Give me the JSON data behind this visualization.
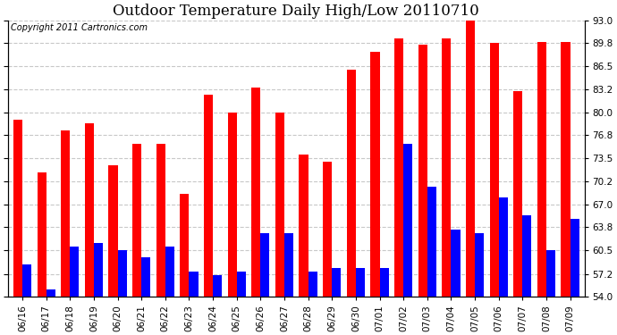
{
  "title": "Outdoor Temperature Daily High/Low 20110710",
  "copyright": "Copyright 2011 Cartronics.com",
  "categories": [
    "06/16",
    "06/17",
    "06/18",
    "06/19",
    "06/20",
    "06/21",
    "06/22",
    "06/23",
    "06/24",
    "06/25",
    "06/26",
    "06/27",
    "06/28",
    "06/29",
    "06/30",
    "07/01",
    "07/02",
    "07/03",
    "07/04",
    "07/05",
    "07/06",
    "07/07",
    "07/08",
    "07/09"
  ],
  "highs": [
    79.0,
    71.5,
    77.5,
    78.5,
    72.5,
    75.5,
    75.5,
    68.5,
    82.5,
    80.0,
    83.5,
    80.0,
    74.0,
    73.0,
    86.0,
    88.5,
    90.5,
    89.5,
    90.5,
    93.0,
    89.8,
    83.0,
    90.0,
    90.0
  ],
  "lows": [
    58.5,
    55.0,
    61.0,
    61.5,
    60.5,
    59.5,
    61.0,
    57.5,
    57.0,
    57.5,
    63.0,
    63.0,
    57.5,
    58.0,
    58.0,
    58.0,
    75.5,
    69.5,
    63.5,
    63.0,
    68.0,
    65.5,
    60.5,
    65.0
  ],
  "bar_width": 0.38,
  "high_color": "#ff0000",
  "low_color": "#0000ff",
  "bg_color": "#ffffff",
  "grid_color": "#c8c8c8",
  "ylim_min": 54.0,
  "ylim_max": 93.0,
  "yticks": [
    54.0,
    57.2,
    60.5,
    63.8,
    67.0,
    70.2,
    73.5,
    76.8,
    80.0,
    83.2,
    86.5,
    89.8,
    93.0
  ],
  "title_fontsize": 12,
  "tick_fontsize": 7.5,
  "copyright_fontsize": 7
}
